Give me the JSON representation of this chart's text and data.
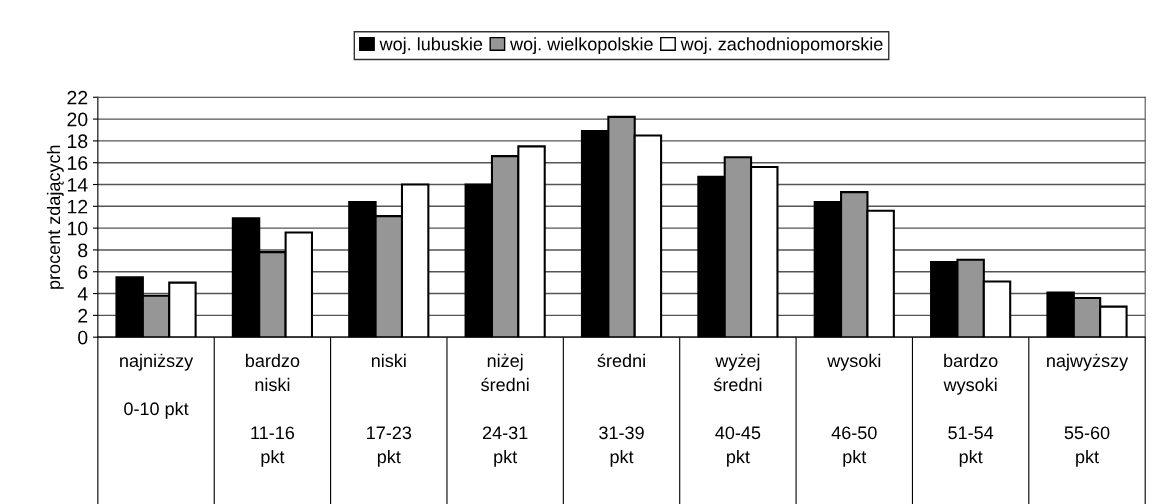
{
  "chart_data": {
    "type": "bar",
    "ylabel": "procent zdających",
    "categories": [
      "najniższy\n\n0-10 pkt",
      "bardzo\nniski\n\n11-16\npkt",
      "niski\n\n\n17-23\npkt",
      "niżej\nśredni\n\n24-31\npkt",
      "średni\n\n\n31-39\npkt",
      "wyżej\nśredni\n\n40-45\npkt",
      "wysoki\n\n\n46-50\npkt",
      "bardzo\nwysoki\n\n51-54\npkt",
      "najwyższy\n\n\n55-60\npkt"
    ],
    "series": [
      {
        "name": "woj. lubuskie",
        "color": "#000000",
        "values": [
          5.5,
          10.9,
          12.4,
          14.0,
          18.9,
          14.7,
          12.4,
          6.9,
          4.1
        ]
      },
      {
        "name": "woj. wielkopolskie",
        "color": "#969696",
        "values": [
          3.8,
          7.8,
          11.1,
          16.6,
          20.2,
          16.5,
          13.3,
          7.1,
          3.6
        ]
      },
      {
        "name": "woj. zachodniopomorskie",
        "color": "#ffffff",
        "values": [
          5.0,
          9.6,
          14.0,
          17.5,
          18.5,
          15.6,
          11.6,
          5.1,
          2.8
        ]
      }
    ],
    "ylim": [
      0,
      22
    ],
    "yticks": [
      0,
      2,
      4,
      6,
      8,
      10,
      12,
      14,
      16,
      18,
      20,
      22
    ],
    "grid": "y",
    "legend": "top"
  }
}
